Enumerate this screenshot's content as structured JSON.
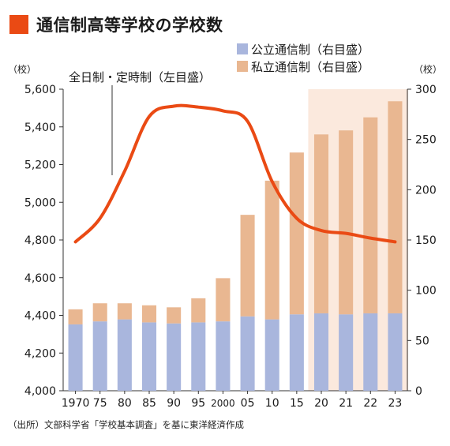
{
  "title": "通信制高等学校の学校数",
  "source": "（出所）文部科学省「学校基本調査」を基に東洋経済作成",
  "colors": {
    "accent": "#ea4a14",
    "public_bar": "#a9b6dd",
    "private_bar": "#e9b791",
    "highlight_bg": "#fbe9dd",
    "line": "#ea4a14"
  },
  "chart_data": {
    "type": "bar",
    "categories": [
      "1970",
      "75",
      "80",
      "85",
      "90",
      "95",
      "2000",
      "05",
      "10",
      "15",
      "20",
      "21",
      "22",
      "23"
    ],
    "left_axis": {
      "unit": "（校）",
      "ylim": [
        4000,
        5600
      ],
      "ticks": [
        "4,000",
        "4,200",
        "4,400",
        "4,600",
        "4,800",
        "5,000",
        "5,200",
        "5,400",
        "5,600"
      ]
    },
    "right_axis": {
      "unit": "（校）",
      "ylim": [
        0,
        300
      ],
      "ticks": [
        "0",
        "50",
        "100",
        "150",
        "200",
        "250",
        "300"
      ]
    },
    "series": [
      {
        "name": "公立通信制（右目盛）",
        "kind": "bar",
        "axis": "right",
        "color": "#a9b6dd",
        "values": [
          66,
          69,
          71,
          68,
          67,
          68,
          69,
          74,
          71,
          76,
          77,
          76,
          77,
          77
        ]
      },
      {
        "name": "私立通信制（右目盛）",
        "kind": "bar",
        "axis": "right",
        "stacked": true,
        "color": "#e9b791",
        "values": [
          15,
          18,
          16,
          17,
          16,
          24,
          43,
          101,
          138,
          161,
          178,
          183,
          195,
          211
        ]
      },
      {
        "name": "全日制・定時制（左目盛）",
        "kind": "line",
        "axis": "left",
        "color": "#ea4a14",
        "values": [
          4790,
          4915,
          5165,
          5455,
          5510,
          5505,
          5485,
          5430,
          5110,
          4915,
          4850,
          4835,
          4810,
          4790
        ]
      }
    ],
    "highlight_categories": [
      "20",
      "21",
      "22",
      "23"
    ],
    "legend_placement": "top-right"
  }
}
